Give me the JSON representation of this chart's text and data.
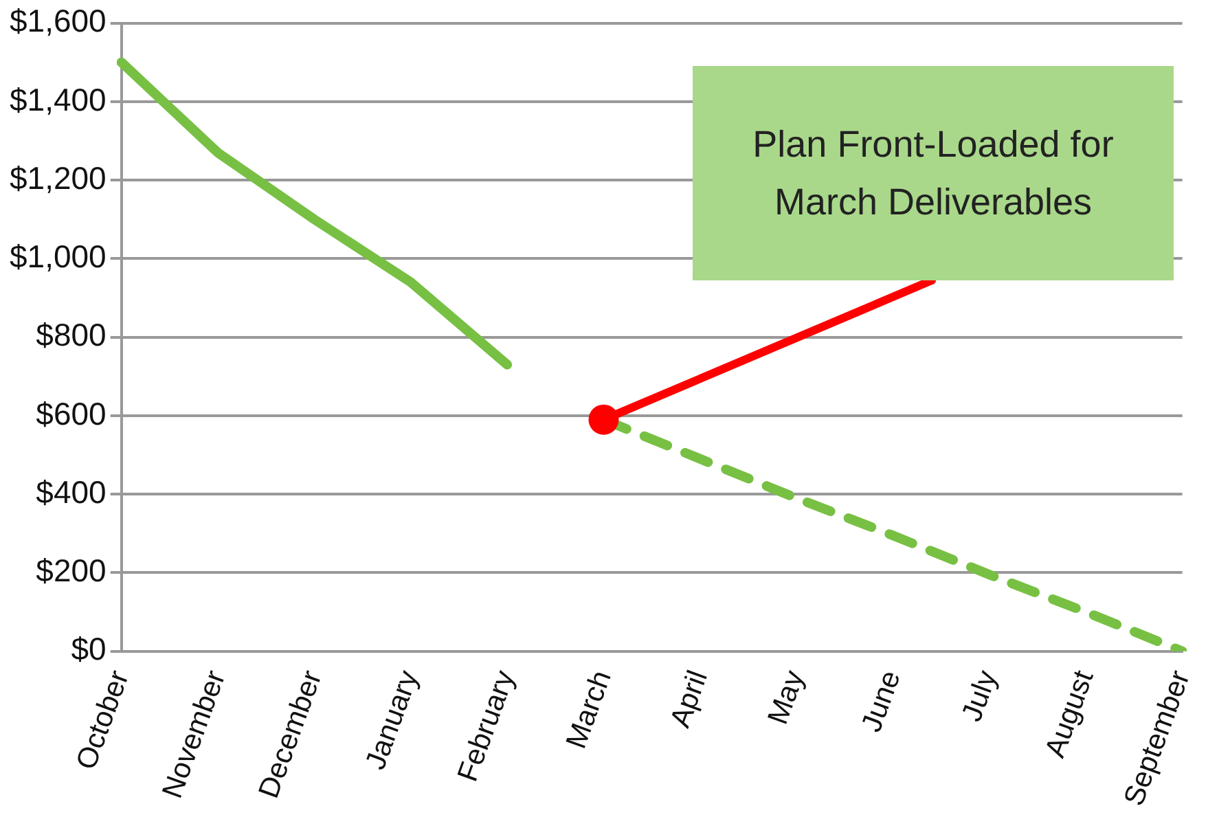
{
  "chart_data": {
    "type": "line",
    "categories": [
      "October",
      "November",
      "December",
      "January",
      "February",
      "March",
      "April",
      "May",
      "June",
      "July",
      "August",
      "September"
    ],
    "series": [
      {
        "color": "#77c043",
        "line_style": "solid",
        "values": [
          1500,
          1270,
          1100,
          940,
          730,
          null,
          null,
          null,
          null,
          null,
          null,
          null
        ]
      },
      {
        "color": "#77c043",
        "line_style": "dashed",
        "values": [
          null,
          null,
          null,
          null,
          null,
          590,
          490,
          390,
          295,
          195,
          100,
          0
        ]
      }
    ],
    "ylim": [
      0,
      1600
    ],
    "yticks": [
      {
        "value": 0,
        "label": "$0"
      },
      {
        "value": 200,
        "label": "$200"
      },
      {
        "value": 400,
        "label": "$400"
      },
      {
        "value": 600,
        "label": "$600"
      },
      {
        "value": 800,
        "label": "$800"
      },
      {
        "value": 1000,
        "label": "$1,000"
      },
      {
        "value": 1200,
        "label": "$1,200"
      },
      {
        "value": 1400,
        "label": "$1,400"
      },
      {
        "value": 1600,
        "label": "$1,600"
      }
    ],
    "grid": "y",
    "legend": false,
    "marker": "none",
    "annotations": [
      "Plan Front-Loaded for March Deliverables"
    ]
  }
}
